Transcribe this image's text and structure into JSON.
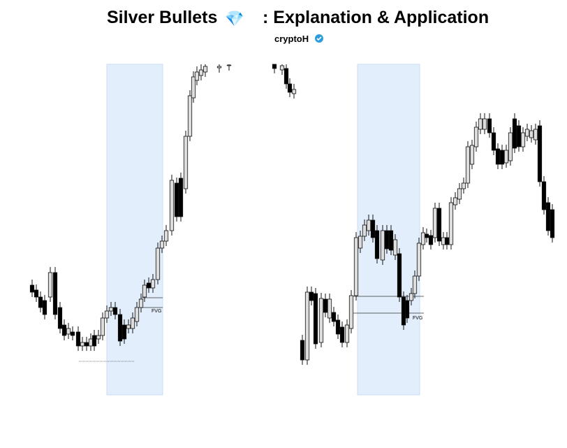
{
  "title": "Silver Bullets",
  "title_icon": "💎",
  "title_rest": ": Explanation & Application",
  "author": "cryptoH",
  "labels": [
    "FVG",
    "FVG"
  ]
}
